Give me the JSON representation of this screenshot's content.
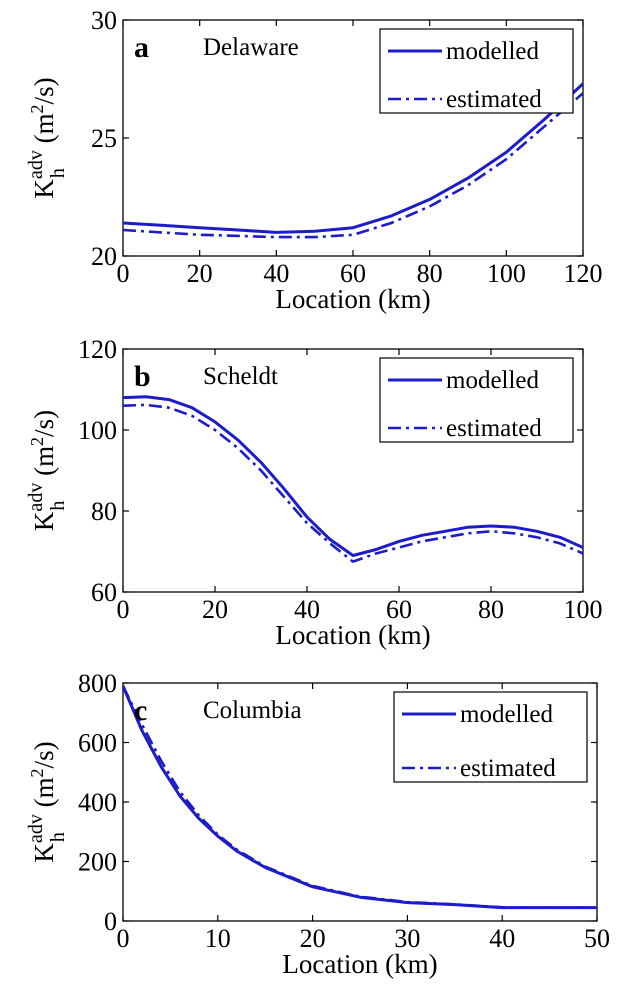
{
  "chart_data": [
    {
      "type": "line",
      "panel_label": "a",
      "title": "Delaware",
      "xlabel": "Location (km)",
      "ylabel_main": "K",
      "ylabel_sup": "adv",
      "ylabel_sub": "h",
      "ylabel_unit": "(m",
      "ylabel_unit_sup": "2",
      "ylabel_unit_end": "/s)",
      "xlim": [
        0,
        120
      ],
      "ylim": [
        20,
        30
      ],
      "xticks": [
        0,
        20,
        40,
        60,
        80,
        100,
        120
      ],
      "yticks": [
        20,
        25,
        30
      ],
      "legend_position": "top-right",
      "color": "#1c1cc8",
      "series": [
        {
          "name": "modelled",
          "style": "solid",
          "x": [
            0,
            10,
            20,
            30,
            40,
            50,
            60,
            70,
            80,
            90,
            100,
            110,
            120
          ],
          "y": [
            21.4,
            21.3,
            21.2,
            21.1,
            21.0,
            21.05,
            21.2,
            21.7,
            22.4,
            23.3,
            24.4,
            25.8,
            27.3
          ]
        },
        {
          "name": "estimated",
          "style": "dashdot",
          "x": [
            0,
            10,
            20,
            30,
            40,
            50,
            60,
            70,
            80,
            90,
            100,
            110,
            120
          ],
          "y": [
            21.1,
            21.0,
            20.9,
            20.85,
            20.8,
            20.8,
            20.9,
            21.4,
            22.1,
            23.0,
            24.1,
            25.5,
            26.9
          ]
        }
      ]
    },
    {
      "type": "line",
      "panel_label": "b",
      "title": "Scheldt",
      "xlabel": "Location (km)",
      "ylabel_main": "K",
      "ylabel_sup": "adv",
      "ylabel_sub": "h",
      "ylabel_unit": "(m",
      "ylabel_unit_sup": "2",
      "ylabel_unit_end": "/s)",
      "xlim": [
        0,
        100
      ],
      "ylim": [
        60,
        120
      ],
      "xticks": [
        0,
        20,
        40,
        60,
        80,
        100
      ],
      "yticks": [
        60,
        80,
        100,
        120
      ],
      "legend_position": "top-right",
      "color": "#1c1cc8",
      "series": [
        {
          "name": "modelled",
          "style": "solid",
          "x": [
            0,
            5,
            10,
            15,
            20,
            25,
            30,
            35,
            40,
            45,
            50,
            55,
            60,
            65,
            70,
            75,
            80,
            85,
            90,
            95,
            100
          ],
          "y": [
            108,
            108.2,
            107.5,
            105.5,
            102,
            97.5,
            92,
            85.5,
            78.5,
            73,
            69,
            70.5,
            72.5,
            74,
            75,
            76,
            76.3,
            76,
            75,
            73.5,
            71
          ]
        },
        {
          "name": "estimated",
          "style": "dashdot",
          "x": [
            0,
            5,
            10,
            15,
            20,
            25,
            30,
            35,
            40,
            45,
            50,
            55,
            60,
            65,
            70,
            75,
            80,
            85,
            90,
            95,
            100
          ],
          "y": [
            106,
            106.2,
            105.5,
            103.5,
            100,
            95.5,
            90,
            83.5,
            77,
            72,
            67.5,
            69.5,
            71,
            72.5,
            73.5,
            74.5,
            75,
            74.5,
            73.5,
            72,
            69.5
          ]
        }
      ]
    },
    {
      "type": "line",
      "panel_label": "c",
      "title": "Columbia",
      "xlabel": "Location (km)",
      "ylabel_main": "K",
      "ylabel_sup": "adv",
      "ylabel_sub": "h",
      "ylabel_unit": "(m",
      "ylabel_unit_sup": "2",
      "ylabel_unit_end": "/s)",
      "xlim": [
        0,
        50
      ],
      "ylim": [
        0,
        800
      ],
      "xticks": [
        0,
        10,
        20,
        30,
        40,
        50
      ],
      "yticks": [
        0,
        200,
        400,
        600,
        800
      ],
      "legend_position": "top-right",
      "color": "#1c1cc8",
      "series": [
        {
          "name": "modelled",
          "style": "solid",
          "x": [
            0,
            2,
            4,
            6,
            8,
            10,
            12,
            15,
            20,
            25,
            30,
            35,
            40,
            45,
            50
          ],
          "y": [
            790,
            640,
            520,
            420,
            345,
            285,
            235,
            180,
            115,
            80,
            62,
            55,
            45,
            45,
            45
          ]
        },
        {
          "name": "estimated",
          "style": "dashdot",
          "x": [
            0,
            2,
            4,
            6,
            8,
            10,
            12,
            15,
            20,
            25,
            30,
            35,
            40,
            45,
            50
          ],
          "y": [
            790,
            660,
            540,
            435,
            355,
            290,
            240,
            183,
            118,
            82,
            64,
            56,
            46,
            45,
            45
          ]
        }
      ]
    }
  ]
}
